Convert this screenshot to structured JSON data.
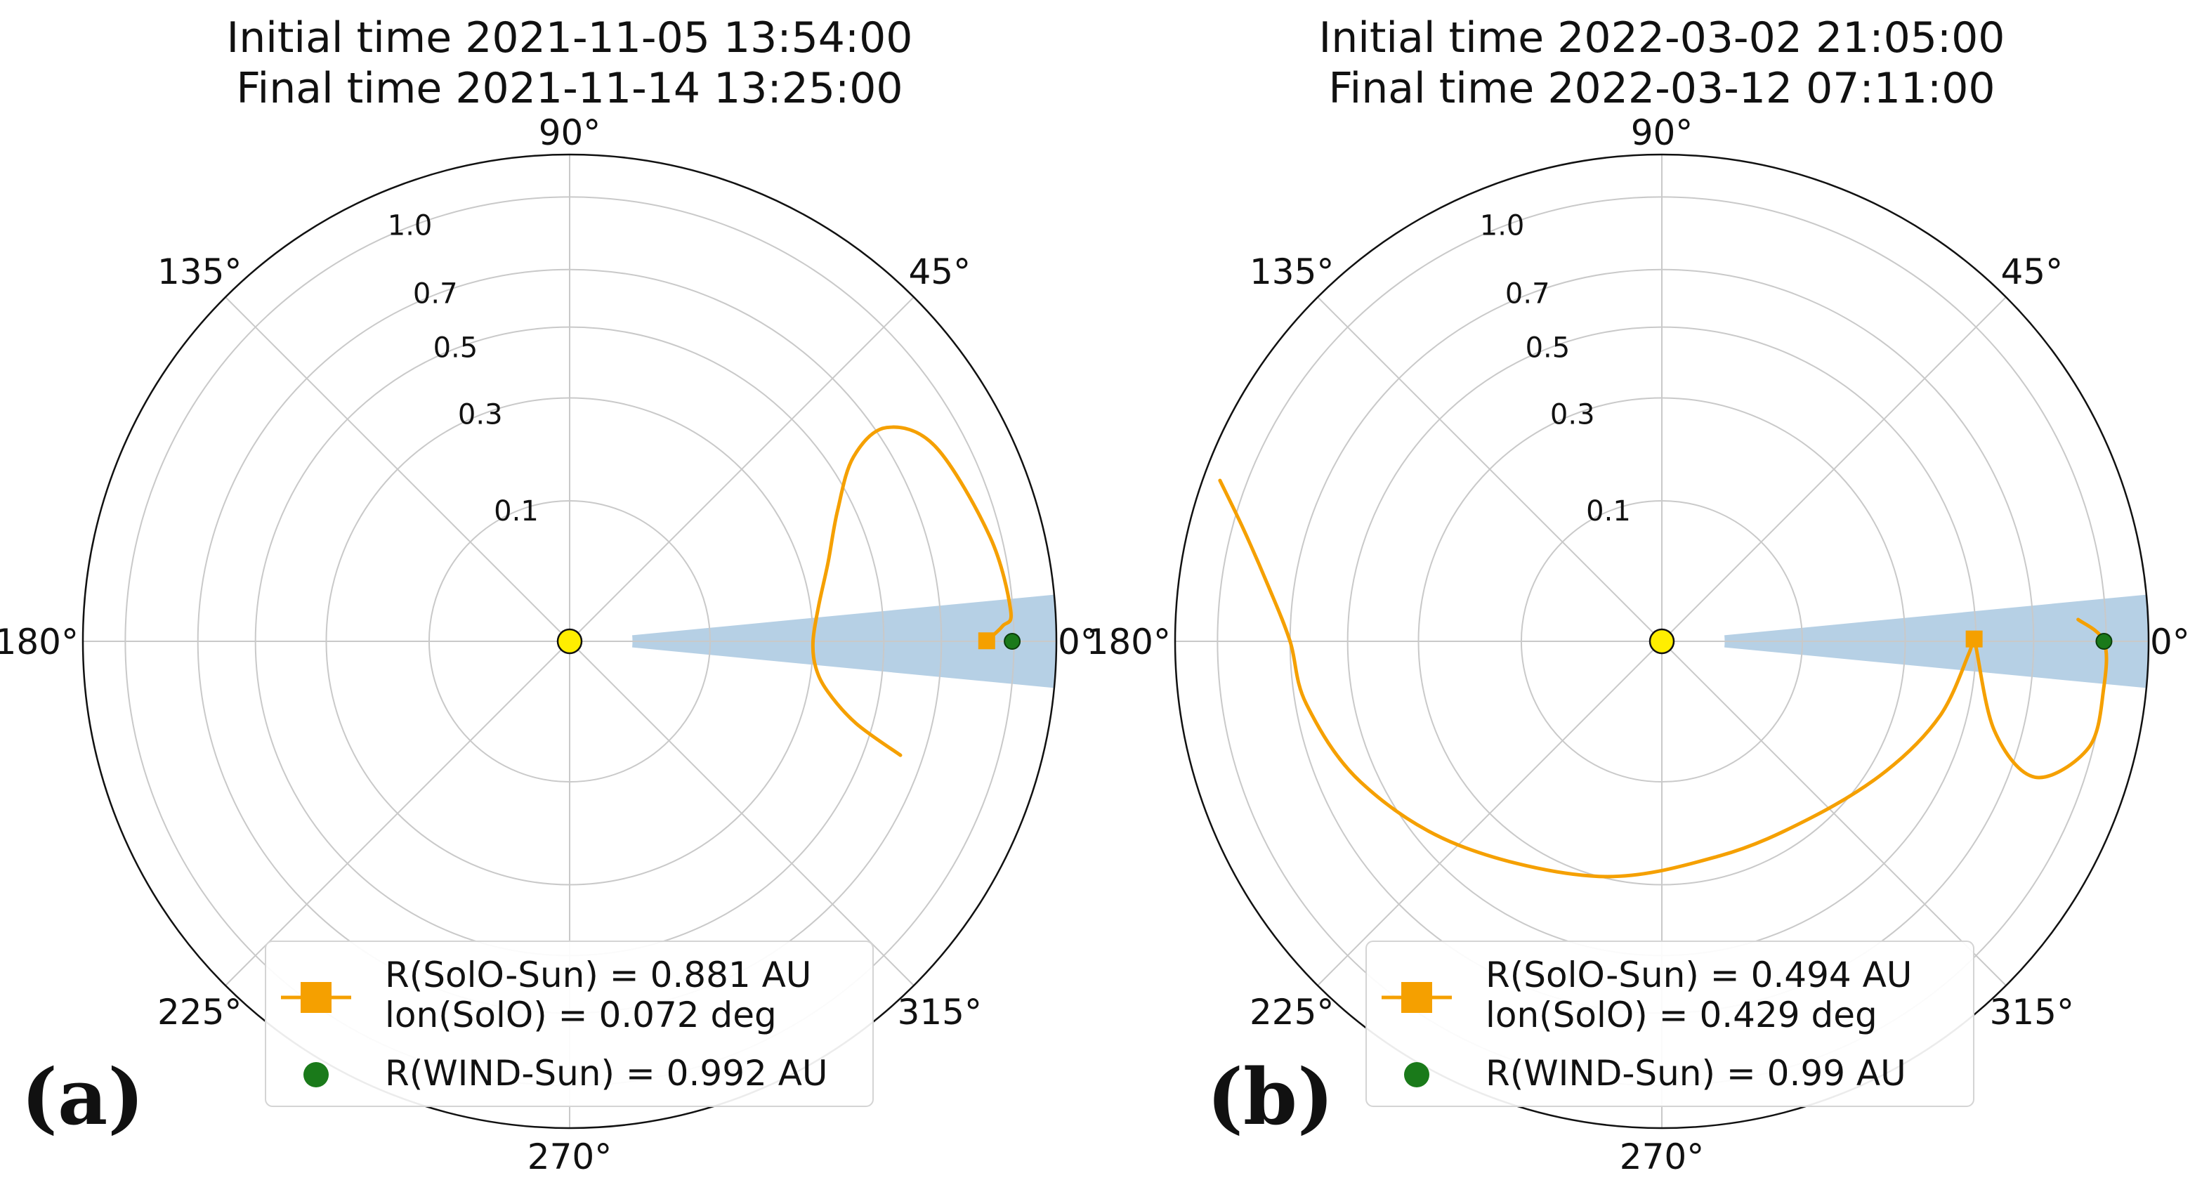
{
  "chart_data": [
    {
      "type": "scatter",
      "projection": "polar",
      "panel_label": "(a)",
      "title_lines": [
        "Initial time 2021-11-05 13:54:00",
        "Final time 2021-11-14 13:25:00"
      ],
      "theta_ticks": [
        "0°",
        "45°",
        "90°",
        "135°",
        "180°",
        "225°",
        "270°",
        "315°"
      ],
      "r_ticks": [
        0.1,
        0.3,
        0.5,
        0.7,
        1.0
      ],
      "r_tick_labels": [
        "0.1",
        "0.3",
        "0.5",
        "0.7",
        "1.0"
      ],
      "rlim": [
        0,
        1.2
      ],
      "r_scale": "sqrt",
      "grid": true,
      "legend_position": "bottom",
      "shaded_sector": {
        "r_min": 0.02,
        "r_max": 1.2,
        "half_width_deg": 5.5,
        "color": "#a9c8e0"
      },
      "sun": {
        "r": 0,
        "lon": 0,
        "color": "#ffee00"
      },
      "solo_track": {
        "lon_deg": [
          -19,
          -16,
          -11,
          -6,
          0,
          8,
          17,
          26,
          33,
          34,
          28,
          14,
          4,
          2,
          0.07
        ],
        "r_au": [
          0.62,
          0.45,
          0.35,
          0.31,
          0.3,
          0.32,
          0.37,
          0.45,
          0.58,
          0.74,
          0.87,
          0.95,
          0.99,
          0.95,
          0.881
        ]
      },
      "series": [
        {
          "name": "R(SolO-Sun) = 0.881 AU",
          "name_line2": "lon(SolO) = 0.072 deg",
          "marker": "square",
          "color": "#f5a000",
          "r": 0.881,
          "lon": 0.072
        },
        {
          "name": "R(WIND-Sun) = 0.992 AU",
          "marker": "circle",
          "color": "#1a7a1a",
          "r": 0.992,
          "lon": 0
        }
      ]
    },
    {
      "type": "scatter",
      "projection": "polar",
      "panel_label": "(b)",
      "title_lines": [
        "Initial time 2022-03-02 21:05:00",
        "Final time 2022-03-12 07:11:00"
      ],
      "theta_ticks": [
        "0°",
        "45°",
        "90°",
        "135°",
        "180°",
        "225°",
        "270°",
        "315°"
      ],
      "r_ticks": [
        0.1,
        0.3,
        0.5,
        0.7,
        1.0
      ],
      "r_tick_labels": [
        "0.1",
        "0.3",
        "0.5",
        "0.7",
        "1.0"
      ],
      "rlim": [
        0,
        1.2
      ],
      "r_scale": "sqrt",
      "grid": true,
      "legend_position": "bottom",
      "shaded_sector": {
        "r_min": 0.02,
        "r_max": 1.2,
        "half_width_deg": 5.5,
        "color": "#a9c8e0"
      },
      "sun": {
        "r": 0,
        "lon": 0,
        "color": "#ffee00"
      },
      "solo_track": {
        "lon_deg": [
          160,
          165,
          172,
          180,
          190,
          205,
          225,
          255,
          285,
          310,
          330,
          345,
          358,
          0.43,
          -15,
          -20,
          -14,
          -6,
          0,
          3
        ],
        "r_au": [
          1.12,
          0.95,
          0.8,
          0.7,
          0.66,
          0.56,
          0.42,
          0.3,
          0.25,
          0.27,
          0.34,
          0.42,
          0.48,
          0.494,
          0.6,
          0.8,
          0.98,
          1.0,
          0.99,
          0.88
        ]
      },
      "series": [
        {
          "name": "R(SolO-Sun) = 0.494 AU",
          "name_line2": "lon(SolO) = 0.429 deg",
          "marker": "square",
          "color": "#f5a000",
          "r": 0.494,
          "lon": 0.429
        },
        {
          "name": "R(WIND-Sun) = 0.99 AU",
          "marker": "circle",
          "color": "#1a7a1a",
          "r": 0.99,
          "lon": 0
        }
      ]
    }
  ]
}
